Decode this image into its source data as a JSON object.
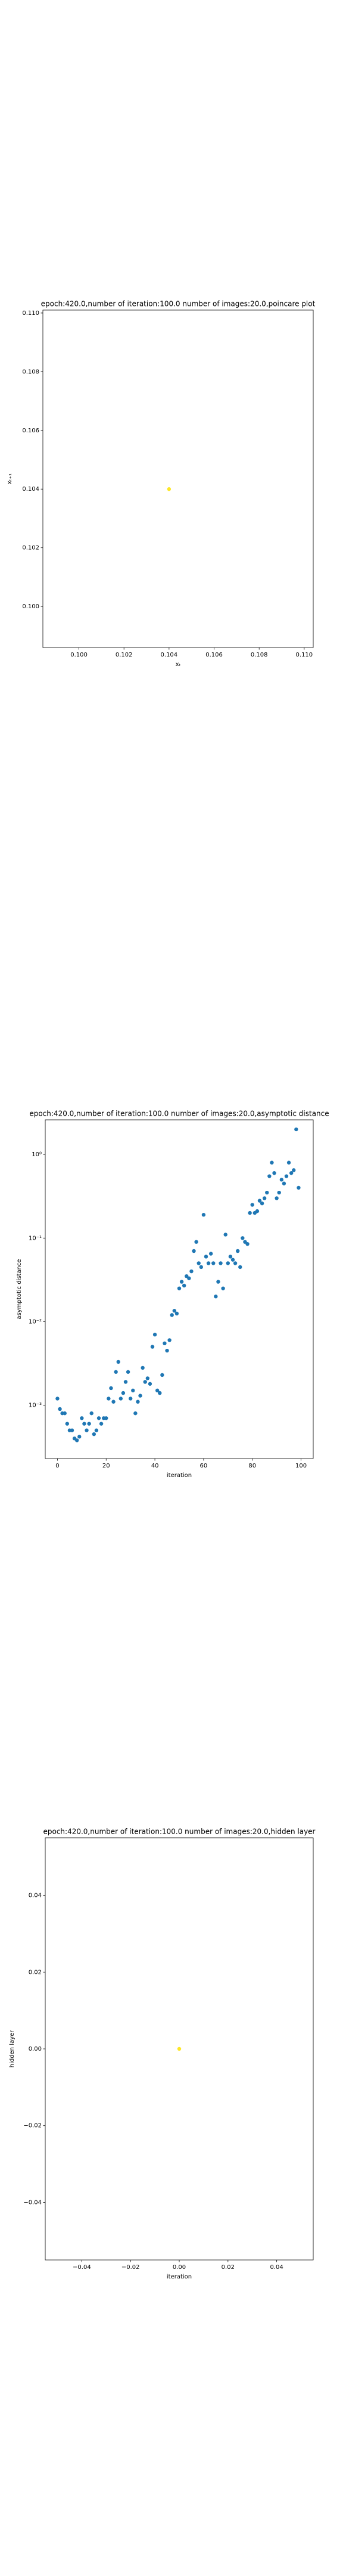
{
  "chart_data": [
    {
      "type": "scatter",
      "title": "epoch:420.0,number of iteration:100.0 number of images:20.0,poincare plot",
      "x_label": "xₜ",
      "y_label": "xₜ₊₁",
      "color": "#fde725",
      "x": [
        0.104
      ],
      "values": [
        0.104
      ],
      "xlim": [
        0.0984,
        0.1104
      ],
      "ylim": [
        0.0986,
        0.1101
      ],
      "xticks": [
        {
          "value": 0.1,
          "label": "0.100"
        },
        {
          "value": 0.102,
          "label": "0.102"
        },
        {
          "value": 0.104,
          "label": "0.104"
        },
        {
          "value": 0.106,
          "label": "0.106"
        },
        {
          "value": 0.108,
          "label": "0.108"
        },
        {
          "value": 0.11,
          "label": "0.110"
        }
      ],
      "yticks": [
        {
          "value": 0.1,
          "label": "0.100"
        },
        {
          "value": 0.102,
          "label": "0.102"
        },
        {
          "value": 0.104,
          "label": "0.104"
        },
        {
          "value": 0.106,
          "label": "0.106"
        },
        {
          "value": 0.108,
          "label": "0.108"
        },
        {
          "value": 0.11,
          "label": "0.110"
        }
      ]
    },
    {
      "type": "scatter",
      "title": "epoch:420.0,number of iteration:100.0  number of images:20.0,asymptotic distance",
      "x_label": "iteration",
      "y_label": "asymptotic distance",
      "color": "#1f77b4",
      "yscale": "log",
      "x": [
        0,
        1,
        2,
        3,
        4,
        5,
        6,
        7,
        8,
        9,
        10,
        11,
        12,
        13,
        14,
        15,
        16,
        17,
        18,
        19,
        20,
        21,
        22,
        23,
        24,
        25,
        26,
        27,
        28,
        29,
        30,
        31,
        32,
        33,
        34,
        35,
        36,
        37,
        38,
        39,
        40,
        41,
        42,
        43,
        44,
        45,
        46,
        47,
        48,
        49,
        50,
        51,
        52,
        53,
        54,
        55,
        56,
        57,
        58,
        59,
        60,
        61,
        62,
        63,
        64,
        65,
        66,
        67,
        68,
        69,
        70,
        71,
        72,
        73,
        74,
        75,
        76,
        77,
        78,
        79,
        80,
        81,
        82,
        83,
        84,
        85,
        86,
        87,
        88,
        89,
        90,
        91,
        92,
        93,
        94,
        95,
        96,
        97,
        98,
        99
      ],
      "values": [
        0.0012,
        0.0009,
        0.0008,
        0.0008,
        0.0006,
        0.0005,
        0.0005,
        0.0004,
        0.00038,
        0.00042,
        0.0007,
        0.0006,
        0.0005,
        0.0006,
        0.0008,
        0.00045,
        0.0005,
        0.0007,
        0.0006,
        0.0007,
        0.0007,
        0.0012,
        0.0016,
        0.0011,
        0.0025,
        0.0033,
        0.0012,
        0.0014,
        0.0019,
        0.0025,
        0.0012,
        0.0015,
        0.0008,
        0.0011,
        0.0013,
        0.0028,
        0.0019,
        0.0021,
        0.0018,
        0.005,
        0.007,
        0.0015,
        0.0014,
        0.0023,
        0.0055,
        0.0045,
        0.006,
        0.012,
        0.0135,
        0.0125,
        0.025,
        0.03,
        0.027,
        0.035,
        0.033,
        0.04,
        0.07,
        0.09,
        0.05,
        0.045,
        0.19,
        0.06,
        0.05,
        0.065,
        0.05,
        0.02,
        0.03,
        0.05,
        0.025,
        0.11,
        0.05,
        0.06,
        0.055,
        0.05,
        0.07,
        0.045,
        0.1,
        0.09,
        0.085,
        0.2,
        0.25,
        0.2,
        0.21,
        0.28,
        0.26,
        0.3,
        0.35,
        0.55,
        0.8,
        0.6,
        0.3,
        0.35,
        0.5,
        0.45,
        0.55,
        0.8,
        0.6,
        0.65,
        2.0,
        0.4
      ],
      "xlim": [
        -5,
        105
      ],
      "ylim": [
        0.00023,
        2.6
      ],
      "xticks": [
        0,
        20,
        40,
        60,
        80,
        100
      ],
      "yticks": [
        {
          "value": 0.001,
          "label": "10⁻³"
        },
        {
          "value": 0.01,
          "label": "10⁻²"
        },
        {
          "value": 0.1,
          "label": "10⁻¹"
        },
        {
          "value": 1,
          "label": "10⁰"
        }
      ]
    },
    {
      "type": "scatter",
      "title": "epoch:420.0,number of iteration:100.0  number of images:20.0,hidden layer",
      "x_label": "iteration",
      "y_label": "hidden layer",
      "color": "#fde725",
      "x": [
        0
      ],
      "values": [
        0
      ],
      "xlim": [
        -0.055,
        0.055
      ],
      "ylim": [
        -0.055,
        0.055
      ],
      "xticks": [
        {
          "value": -0.04,
          "label": "−0.04"
        },
        {
          "value": -0.02,
          "label": "−0.02"
        },
        {
          "value": 0,
          "label": "0.00"
        },
        {
          "value": 0.02,
          "label": "0.02"
        },
        {
          "value": 0.04,
          "label": "0.04"
        }
      ],
      "yticks": [
        {
          "value": -0.04,
          "label": "−0.04"
        },
        {
          "value": -0.02,
          "label": "−0.02"
        },
        {
          "value": 0,
          "label": "0.00"
        },
        {
          "value": 0.02,
          "label": "0.02"
        },
        {
          "value": 0.04,
          "label": "0.04"
        }
      ]
    }
  ]
}
